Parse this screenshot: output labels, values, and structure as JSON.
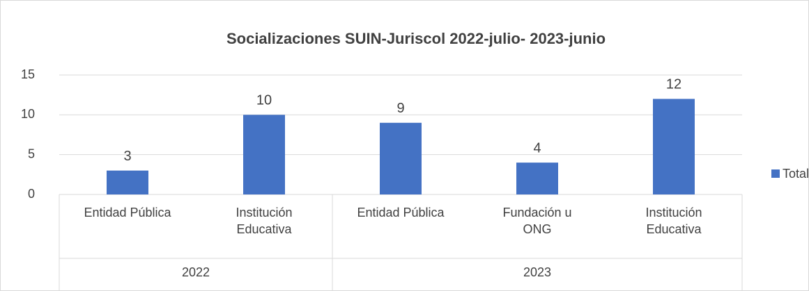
{
  "chart_data": {
    "type": "bar",
    "title": "Socializaciones SUIN-Juriscol 2022-julio- 2023-junio",
    "categories": [
      "Entidad Pública",
      "Institución Educativa",
      "Entidad Pública",
      "Fundación u ONG",
      "Institución Educativa"
    ],
    "category_groups": [
      {
        "label": "2022",
        "size": 2
      },
      {
        "label": "2023",
        "size": 3
      }
    ],
    "series": [
      {
        "name": "Total",
        "color": "#4472c4",
        "values": [
          3,
          10,
          9,
          4,
          12
        ]
      }
    ],
    "ylim": [
      0,
      15
    ],
    "yticks": [
      0,
      5,
      10,
      15
    ],
    "grid": true,
    "legend": "right"
  }
}
